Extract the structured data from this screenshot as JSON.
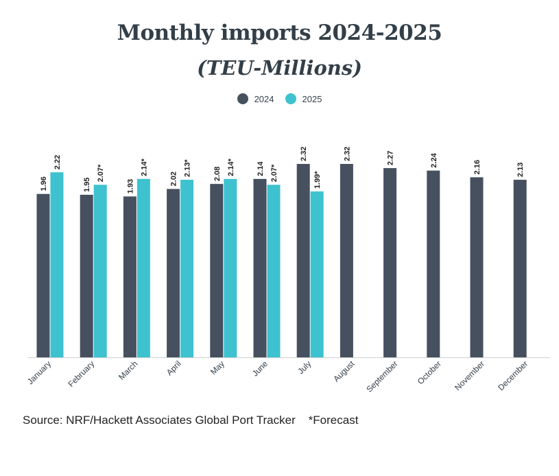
{
  "chart_data": {
    "type": "bar",
    "title": "Monthly imports 2024-2025",
    "subtitle": "(TEU-Millions)",
    "categories": [
      "January",
      "February",
      "March",
      "April",
      "May",
      "June",
      "July",
      "August",
      "September",
      "October",
      "November",
      "December"
    ],
    "series": [
      {
        "name": "2024",
        "color": "#46505f",
        "values": [
          1.96,
          1.95,
          1.93,
          2.02,
          2.08,
          2.14,
          2.32,
          2.32,
          2.27,
          2.24,
          2.16,
          2.13
        ],
        "labels": [
          "1.96",
          "1.95",
          "1.93",
          "2.02",
          "2.08",
          "2.14",
          "2.32",
          "2.32",
          "2.27",
          "2.24",
          "2.16",
          "2.13"
        ]
      },
      {
        "name": "2025",
        "color": "#3ec2cf",
        "values": [
          2.22,
          2.07,
          2.14,
          2.13,
          2.14,
          2.07,
          1.99,
          null,
          null,
          null,
          null,
          null
        ],
        "labels": [
          "2.22",
          "2.07*",
          "2.14*",
          "2.13*",
          "2.14*",
          "2.07*",
          "1.99*",
          null,
          null,
          null,
          null,
          null
        ]
      }
    ],
    "ylim": [
      0,
      2.32
    ],
    "legend_position": "top-center",
    "grid": false
  },
  "footnote": {
    "source": "Source: NRF/Hackett Associates Global Port Tracker",
    "forecast_note": "*Forecast"
  }
}
